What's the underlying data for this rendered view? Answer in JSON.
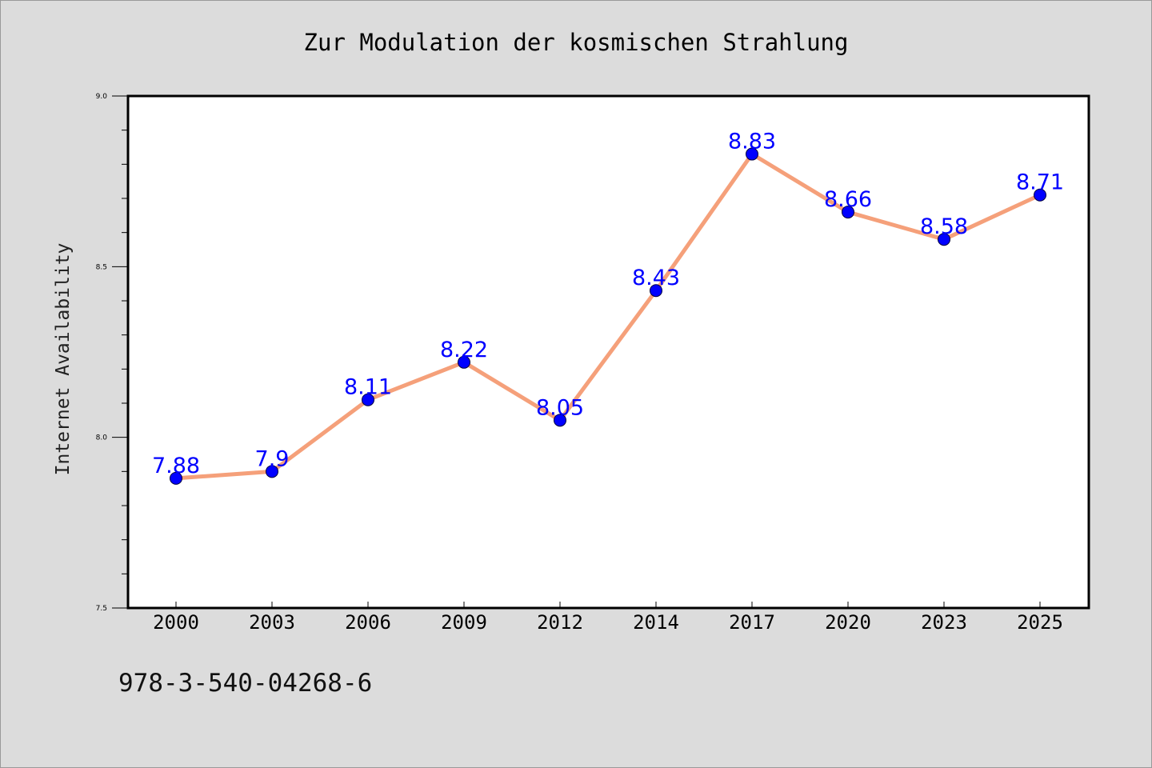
{
  "chart_data": {
    "type": "line",
    "title": "Zur Modulation der kosmischen Strahlung",
    "xlabel": "",
    "ylabel": "Internet Availability",
    "categories": [
      "2000",
      "2003",
      "2006",
      "2009",
      "2012",
      "2014",
      "2017",
      "2020",
      "2023",
      "2025"
    ],
    "series": [
      {
        "values": [
          7.88,
          7.9,
          8.11,
          8.22,
          8.05,
          8.43,
          8.83,
          8.66,
          8.58,
          8.71
        ],
        "data_labels": [
          "7.88",
          "7.9",
          "8.11",
          "8.22",
          "8.05",
          "8.43",
          "8.83",
          "8.66",
          "8.58",
          "8.71"
        ]
      }
    ],
    "ylim": [
      7.5,
      9.0
    ],
    "y_ticks": [
      "7.5",
      "8.0",
      "8.5",
      "9.0"
    ],
    "grid": false,
    "legend": "none",
    "colors": {
      "line": "#f5a07a",
      "marker": "#0000ff",
      "data_label": "#0000ff",
      "plot_background": "#ffffff",
      "page_background": "#dcdcdc"
    }
  },
  "footer": {
    "isbn": "978-3-540-04268-6"
  }
}
